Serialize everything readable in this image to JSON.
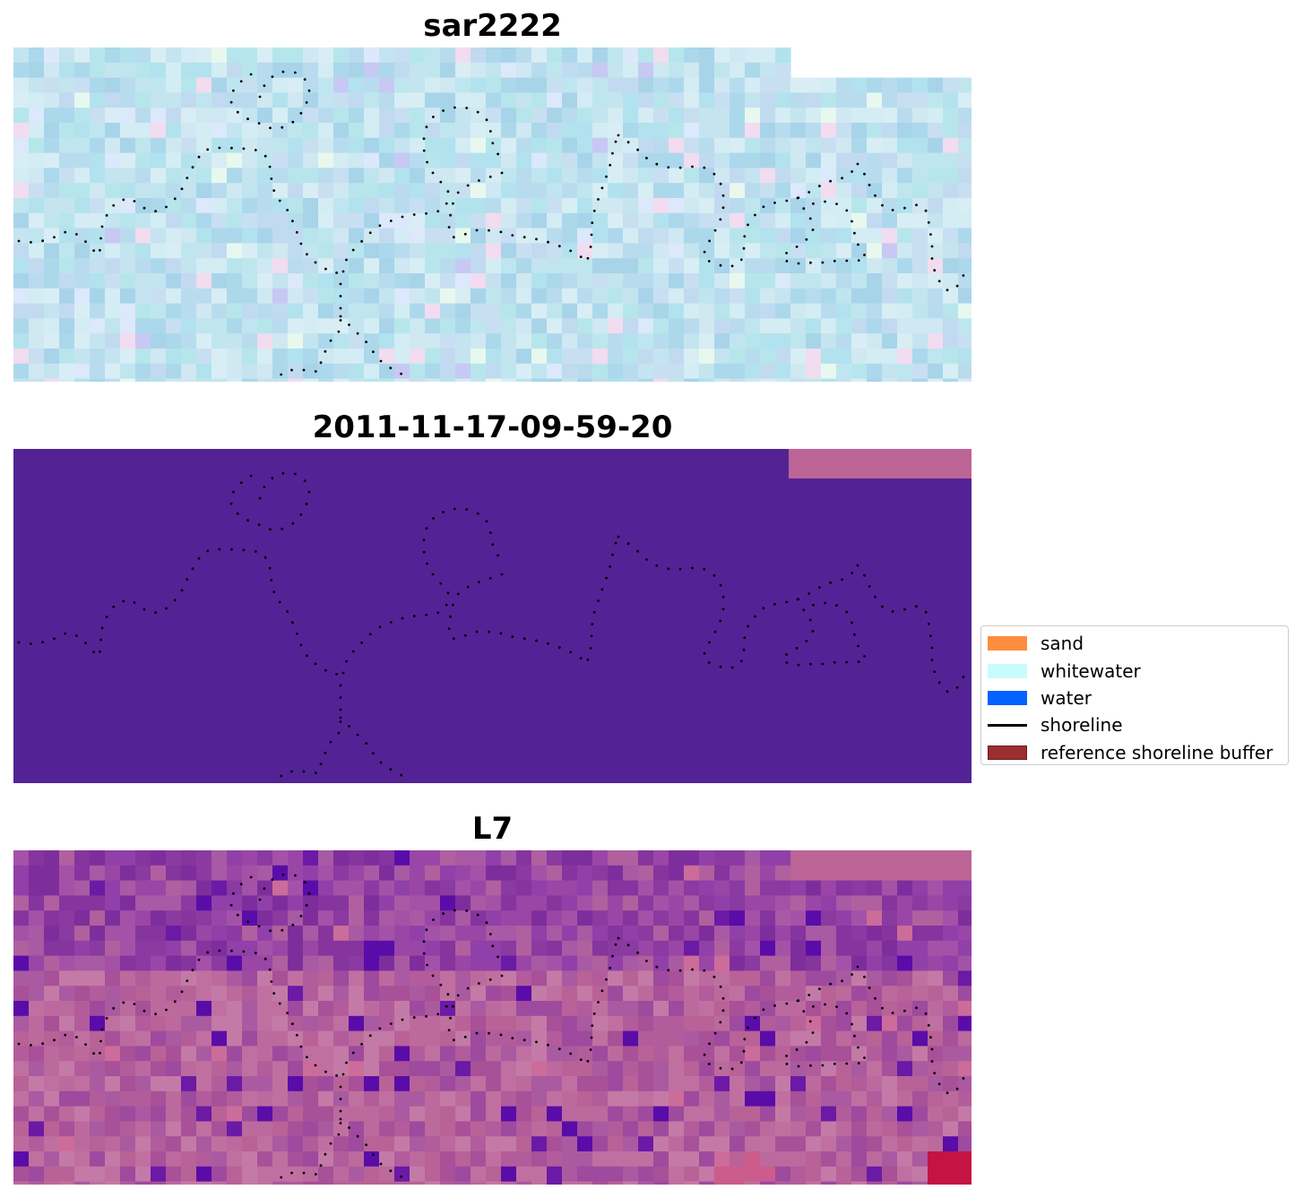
{
  "panels": [
    {
      "title": "sar2222",
      "style": "sar"
    },
    {
      "title": "2011-11-17-09-59-20",
      "style": "class"
    },
    {
      "title": "L7",
      "style": "l7"
    }
  ],
  "legend": {
    "items": [
      {
        "label": "sand",
        "color": "#ff8c3f",
        "kind": "swatch"
      },
      {
        "label": "whitewater",
        "color": "#c8fcfc",
        "kind": "swatch"
      },
      {
        "label": "water",
        "color": "#0062ff",
        "kind": "swatch"
      },
      {
        "label": "shoreline",
        "color": "#000000",
        "kind": "line"
      },
      {
        "label": "reference shoreline buffer",
        "color": "#9b2f2f",
        "kind": "swatch-outline"
      }
    ]
  },
  "colors": {
    "class_fill": "#532395",
    "nodata_fill": "#bc6496",
    "shoreline_dot": "#000000"
  }
}
